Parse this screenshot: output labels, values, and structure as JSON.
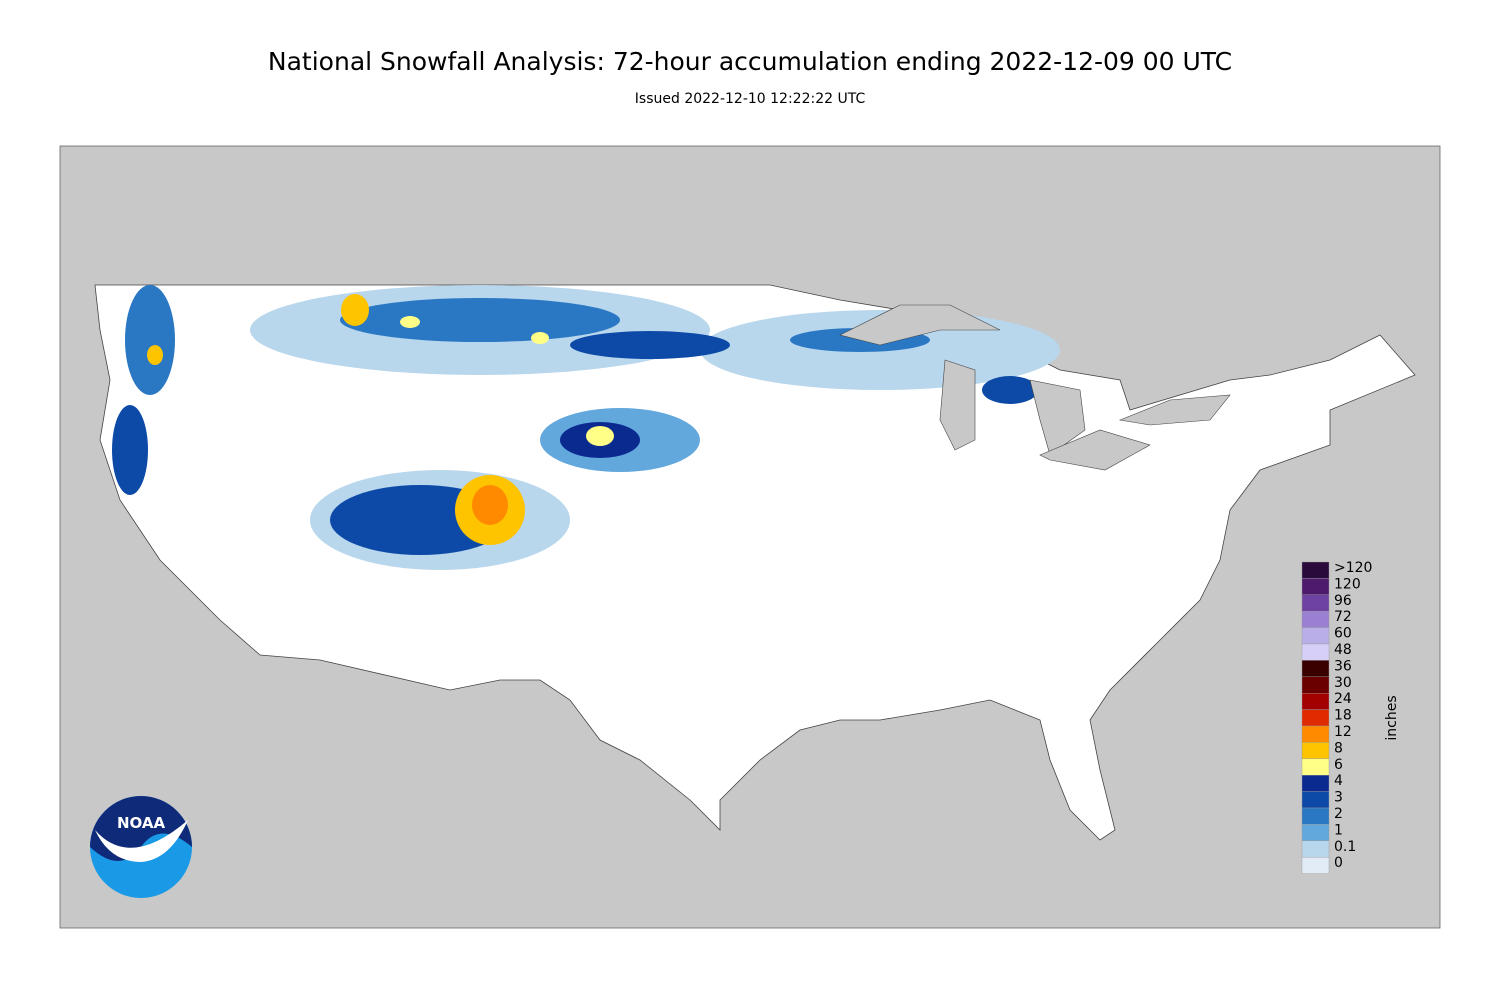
{
  "header": {
    "title": "National Snowfall Analysis: 72-hour accumulation ending 2022-12-09 00 UTC",
    "subtitle": "Issued 2022-12-10 12:22:22 UTC"
  },
  "legend": {
    "unit": "inches",
    "items": [
      {
        "label": ">120",
        "color": "#2a0a3a"
      },
      {
        "label": "120",
        "color": "#4d1a6e"
      },
      {
        "label": "96",
        "color": "#6e42a0"
      },
      {
        "label": "72",
        "color": "#9a7fd2"
      },
      {
        "label": "60",
        "color": "#b9aee8"
      },
      {
        "label": "48",
        "color": "#d6d0f8"
      },
      {
        "label": "36",
        "color": "#3a0000"
      },
      {
        "label": "30",
        "color": "#6a0000"
      },
      {
        "label": "24",
        "color": "#a30000"
      },
      {
        "label": "18",
        "color": "#e02a00"
      },
      {
        "label": "12",
        "color": "#ff8a00"
      },
      {
        "label": "8",
        "color": "#ffc400"
      },
      {
        "label": "6",
        "color": "#ffff88"
      },
      {
        "label": "4",
        "color": "#0b2a8f"
      },
      {
        "label": "3",
        "color": "#0d4aa8"
      },
      {
        "label": "2",
        "color": "#2a78c4"
      },
      {
        "label": "1",
        "color": "#62a8dc"
      },
      {
        "label": "0.1",
        "color": "#b8d6ec"
      },
      {
        "label": "0",
        "color": "#e2ecf6"
      }
    ]
  },
  "logo": {
    "text": "NOAA"
  }
}
